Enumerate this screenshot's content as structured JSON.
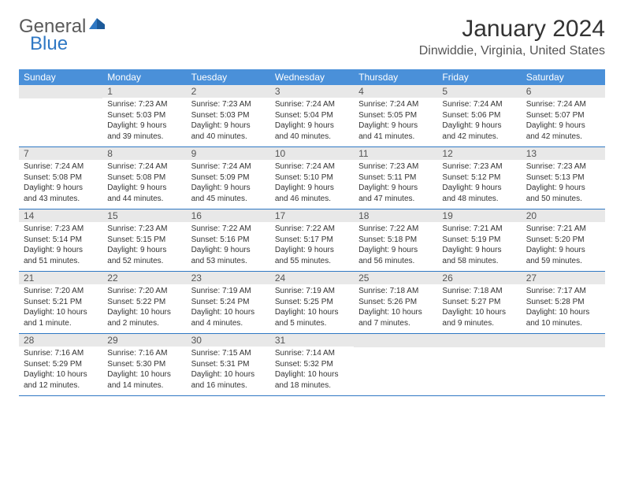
{
  "logo": {
    "text1": "General",
    "text2": "Blue"
  },
  "title": "January 2024",
  "location": "Dinwiddie, Virginia, United States",
  "weekdays": [
    "Sunday",
    "Monday",
    "Tuesday",
    "Wednesday",
    "Thursday",
    "Friday",
    "Saturday"
  ],
  "colors": {
    "header_bg": "#4a90d9",
    "header_text": "#ffffff",
    "daynum_bg": "#e8e8e8",
    "row_border": "#2f78c4",
    "body_text": "#333333",
    "logo_gray": "#5a5a5a",
    "logo_blue": "#2f78c4"
  },
  "typography": {
    "title_fontsize": 30,
    "location_fontsize": 16,
    "weekday_fontsize": 12,
    "daynum_fontsize": 12,
    "body_fontsize": 10
  },
  "weeks": [
    [
      {
        "num": "",
        "lines": []
      },
      {
        "num": "1",
        "lines": [
          "Sunrise: 7:23 AM",
          "Sunset: 5:03 PM",
          "Daylight: 9 hours",
          "and 39 minutes."
        ]
      },
      {
        "num": "2",
        "lines": [
          "Sunrise: 7:23 AM",
          "Sunset: 5:03 PM",
          "Daylight: 9 hours",
          "and 40 minutes."
        ]
      },
      {
        "num": "3",
        "lines": [
          "Sunrise: 7:24 AM",
          "Sunset: 5:04 PM",
          "Daylight: 9 hours",
          "and 40 minutes."
        ]
      },
      {
        "num": "4",
        "lines": [
          "Sunrise: 7:24 AM",
          "Sunset: 5:05 PM",
          "Daylight: 9 hours",
          "and 41 minutes."
        ]
      },
      {
        "num": "5",
        "lines": [
          "Sunrise: 7:24 AM",
          "Sunset: 5:06 PM",
          "Daylight: 9 hours",
          "and 42 minutes."
        ]
      },
      {
        "num": "6",
        "lines": [
          "Sunrise: 7:24 AM",
          "Sunset: 5:07 PM",
          "Daylight: 9 hours",
          "and 42 minutes."
        ]
      }
    ],
    [
      {
        "num": "7",
        "lines": [
          "Sunrise: 7:24 AM",
          "Sunset: 5:08 PM",
          "Daylight: 9 hours",
          "and 43 minutes."
        ]
      },
      {
        "num": "8",
        "lines": [
          "Sunrise: 7:24 AM",
          "Sunset: 5:08 PM",
          "Daylight: 9 hours",
          "and 44 minutes."
        ]
      },
      {
        "num": "9",
        "lines": [
          "Sunrise: 7:24 AM",
          "Sunset: 5:09 PM",
          "Daylight: 9 hours",
          "and 45 minutes."
        ]
      },
      {
        "num": "10",
        "lines": [
          "Sunrise: 7:24 AM",
          "Sunset: 5:10 PM",
          "Daylight: 9 hours",
          "and 46 minutes."
        ]
      },
      {
        "num": "11",
        "lines": [
          "Sunrise: 7:23 AM",
          "Sunset: 5:11 PM",
          "Daylight: 9 hours",
          "and 47 minutes."
        ]
      },
      {
        "num": "12",
        "lines": [
          "Sunrise: 7:23 AM",
          "Sunset: 5:12 PM",
          "Daylight: 9 hours",
          "and 48 minutes."
        ]
      },
      {
        "num": "13",
        "lines": [
          "Sunrise: 7:23 AM",
          "Sunset: 5:13 PM",
          "Daylight: 9 hours",
          "and 50 minutes."
        ]
      }
    ],
    [
      {
        "num": "14",
        "lines": [
          "Sunrise: 7:23 AM",
          "Sunset: 5:14 PM",
          "Daylight: 9 hours",
          "and 51 minutes."
        ]
      },
      {
        "num": "15",
        "lines": [
          "Sunrise: 7:23 AM",
          "Sunset: 5:15 PM",
          "Daylight: 9 hours",
          "and 52 minutes."
        ]
      },
      {
        "num": "16",
        "lines": [
          "Sunrise: 7:22 AM",
          "Sunset: 5:16 PM",
          "Daylight: 9 hours",
          "and 53 minutes."
        ]
      },
      {
        "num": "17",
        "lines": [
          "Sunrise: 7:22 AM",
          "Sunset: 5:17 PM",
          "Daylight: 9 hours",
          "and 55 minutes."
        ]
      },
      {
        "num": "18",
        "lines": [
          "Sunrise: 7:22 AM",
          "Sunset: 5:18 PM",
          "Daylight: 9 hours",
          "and 56 minutes."
        ]
      },
      {
        "num": "19",
        "lines": [
          "Sunrise: 7:21 AM",
          "Sunset: 5:19 PM",
          "Daylight: 9 hours",
          "and 58 minutes."
        ]
      },
      {
        "num": "20",
        "lines": [
          "Sunrise: 7:21 AM",
          "Sunset: 5:20 PM",
          "Daylight: 9 hours",
          "and 59 minutes."
        ]
      }
    ],
    [
      {
        "num": "21",
        "lines": [
          "Sunrise: 7:20 AM",
          "Sunset: 5:21 PM",
          "Daylight: 10 hours",
          "and 1 minute."
        ]
      },
      {
        "num": "22",
        "lines": [
          "Sunrise: 7:20 AM",
          "Sunset: 5:22 PM",
          "Daylight: 10 hours",
          "and 2 minutes."
        ]
      },
      {
        "num": "23",
        "lines": [
          "Sunrise: 7:19 AM",
          "Sunset: 5:24 PM",
          "Daylight: 10 hours",
          "and 4 minutes."
        ]
      },
      {
        "num": "24",
        "lines": [
          "Sunrise: 7:19 AM",
          "Sunset: 5:25 PM",
          "Daylight: 10 hours",
          "and 5 minutes."
        ]
      },
      {
        "num": "25",
        "lines": [
          "Sunrise: 7:18 AM",
          "Sunset: 5:26 PM",
          "Daylight: 10 hours",
          "and 7 minutes."
        ]
      },
      {
        "num": "26",
        "lines": [
          "Sunrise: 7:18 AM",
          "Sunset: 5:27 PM",
          "Daylight: 10 hours",
          "and 9 minutes."
        ]
      },
      {
        "num": "27",
        "lines": [
          "Sunrise: 7:17 AM",
          "Sunset: 5:28 PM",
          "Daylight: 10 hours",
          "and 10 minutes."
        ]
      }
    ],
    [
      {
        "num": "28",
        "lines": [
          "Sunrise: 7:16 AM",
          "Sunset: 5:29 PM",
          "Daylight: 10 hours",
          "and 12 minutes."
        ]
      },
      {
        "num": "29",
        "lines": [
          "Sunrise: 7:16 AM",
          "Sunset: 5:30 PM",
          "Daylight: 10 hours",
          "and 14 minutes."
        ]
      },
      {
        "num": "30",
        "lines": [
          "Sunrise: 7:15 AM",
          "Sunset: 5:31 PM",
          "Daylight: 10 hours",
          "and 16 minutes."
        ]
      },
      {
        "num": "31",
        "lines": [
          "Sunrise: 7:14 AM",
          "Sunset: 5:32 PM",
          "Daylight: 10 hours",
          "and 18 minutes."
        ]
      },
      {
        "num": "",
        "lines": []
      },
      {
        "num": "",
        "lines": []
      },
      {
        "num": "",
        "lines": []
      }
    ]
  ]
}
